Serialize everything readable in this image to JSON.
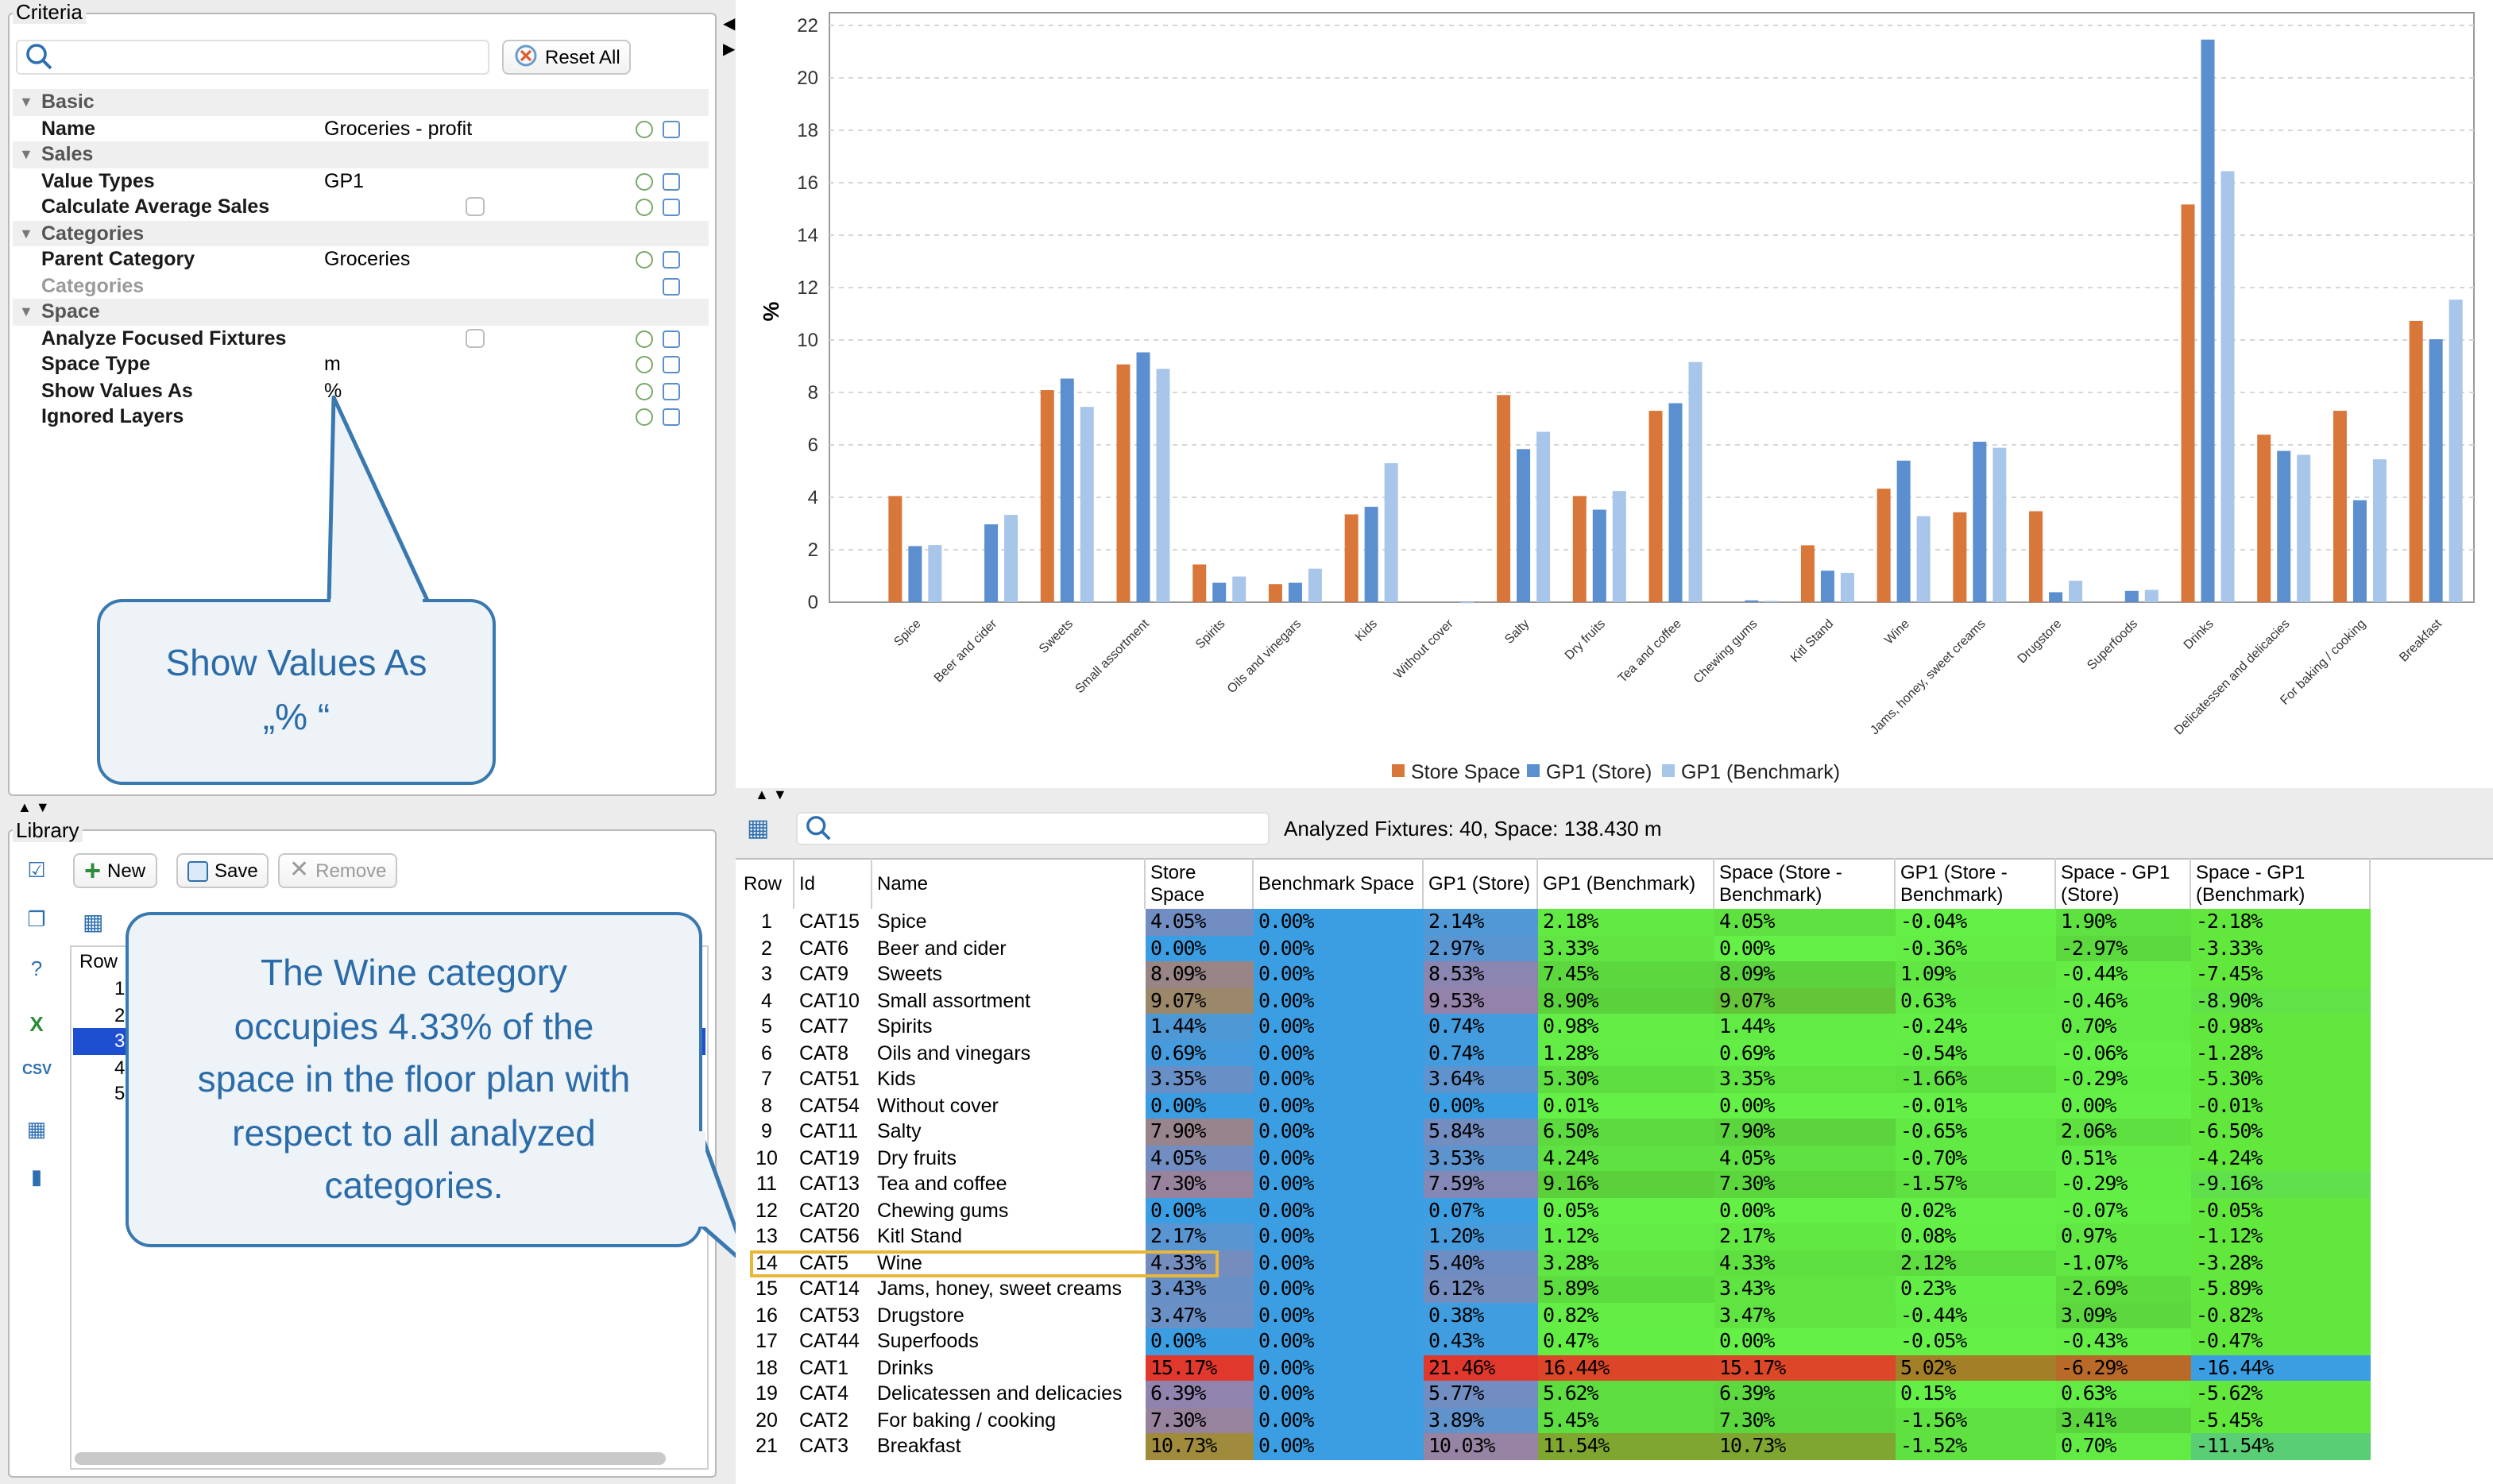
{
  "criteria": {
    "title": "Criteria",
    "search_placeholder": "",
    "reset_label": "Reset All",
    "groups": [
      {
        "label": "Basic",
        "rows": [
          {
            "key": "Name",
            "value": "Groceries - profit"
          }
        ]
      },
      {
        "label": "Sales",
        "rows": [
          {
            "key": "Value Types",
            "value": "GP1"
          },
          {
            "key": "Calculate Average Sales",
            "value": "",
            "checkbox": true
          }
        ]
      },
      {
        "label": "Categories",
        "rows": [
          {
            "key": "Parent Category",
            "value": "Groceries"
          },
          {
            "key": "Categories",
            "value": "",
            "disabled": true
          }
        ]
      },
      {
        "label": "Space",
        "rows": [
          {
            "key": "Analyze Focused Fixtures",
            "value": "",
            "checkbox": true
          },
          {
            "key": "Space Type",
            "value": "m"
          },
          {
            "key": "Show Values As",
            "value": "%"
          },
          {
            "key": "Ignored Layers",
            "value": ""
          }
        ]
      }
    ]
  },
  "callouts": {
    "show_values": {
      "line1": "Show Values As",
      "line2": "„% “"
    },
    "wine": {
      "lines": [
        "The Wine category",
        "occupies 4.33% of the",
        "space in the floor plan with",
        "respect to all analyzed",
        "categories."
      ]
    }
  },
  "library": {
    "title": "Library",
    "new_label": "New",
    "save_label": "Save",
    "remove_label": "Remove",
    "row_header": "Row",
    "rows": [
      "1",
      "2",
      "3",
      "4",
      "5"
    ]
  },
  "table_toolbar": {
    "search_placeholder": "",
    "status": "Analyzed Fixtures: 40, Space: 138.430 m"
  },
  "table": {
    "columns": [
      "Row",
      "Id",
      "Name",
      "Store Space",
      "Benchmark Space",
      "GP1 (Store)",
      "GP1 (Benchmark)",
      "Space (Store - Benchmark)",
      "GP1 (Store - Benchmark)",
      "Space - GP1 (Store)",
      "Space - GP1 (Benchmark)"
    ],
    "rows": [
      [
        "1",
        "CAT15",
        "Spice",
        "4.05%",
        "0.00%",
        "2.14%",
        "2.18%",
        "4.05%",
        "-0.04%",
        "1.90%",
        "-2.18%"
      ],
      [
        "2",
        "CAT6",
        "Beer and cider",
        "0.00%",
        "0.00%",
        "2.97%",
        "3.33%",
        "0.00%",
        "-0.36%",
        "-2.97%",
        "-3.33%"
      ],
      [
        "3",
        "CAT9",
        "Sweets",
        "8.09%",
        "0.00%",
        "8.53%",
        "7.45%",
        "8.09%",
        "1.09%",
        "-0.44%",
        "-7.45%"
      ],
      [
        "4",
        "CAT10",
        "Small assortment",
        "9.07%",
        "0.00%",
        "9.53%",
        "8.90%",
        "9.07%",
        "0.63%",
        "-0.46%",
        "-8.90%"
      ],
      [
        "5",
        "CAT7",
        "Spirits",
        "1.44%",
        "0.00%",
        "0.74%",
        "0.98%",
        "1.44%",
        "-0.24%",
        "0.70%",
        "-0.98%"
      ],
      [
        "6",
        "CAT8",
        "Oils and vinegars",
        "0.69%",
        "0.00%",
        "0.74%",
        "1.28%",
        "0.69%",
        "-0.54%",
        "-0.06%",
        "-1.28%"
      ],
      [
        "7",
        "CAT51",
        "Kids",
        "3.35%",
        "0.00%",
        "3.64%",
        "5.30%",
        "3.35%",
        "-1.66%",
        "-0.29%",
        "-5.30%"
      ],
      [
        "8",
        "CAT54",
        "Without cover",
        "0.00%",
        "0.00%",
        "0.00%",
        "0.01%",
        "0.00%",
        "-0.01%",
        "0.00%",
        "-0.01%"
      ],
      [
        "9",
        "CAT11",
        "Salty",
        "7.90%",
        "0.00%",
        "5.84%",
        "6.50%",
        "7.90%",
        "-0.65%",
        "2.06%",
        "-6.50%"
      ],
      [
        "10",
        "CAT19",
        "Dry fruits",
        "4.05%",
        "0.00%",
        "3.53%",
        "4.24%",
        "4.05%",
        "-0.70%",
        "0.51%",
        "-4.24%"
      ],
      [
        "11",
        "CAT13",
        "Tea and coffee",
        "7.30%",
        "0.00%",
        "7.59%",
        "9.16%",
        "7.30%",
        "-1.57%",
        "-0.29%",
        "-9.16%"
      ],
      [
        "12",
        "CAT20",
        "Chewing gums",
        "0.00%",
        "0.00%",
        "0.07%",
        "0.05%",
        "0.00%",
        "0.02%",
        "-0.07%",
        "-0.05%"
      ],
      [
        "13",
        "CAT56",
        "Kitl Stand",
        "2.17%",
        "0.00%",
        "1.20%",
        "1.12%",
        "2.17%",
        "0.08%",
        "0.97%",
        "-1.12%"
      ],
      [
        "14",
        "CAT5",
        "Wine",
        "4.33%",
        "0.00%",
        "5.40%",
        "3.28%",
        "4.33%",
        "2.12%",
        "-1.07%",
        "-3.28%"
      ],
      [
        "15",
        "CAT14",
        "Jams, honey, sweet creams",
        "3.43%",
        "0.00%",
        "6.12%",
        "5.89%",
        "3.43%",
        "0.23%",
        "-2.69%",
        "-5.89%"
      ],
      [
        "16",
        "CAT53",
        "Drugstore",
        "3.47%",
        "0.00%",
        "0.38%",
        "0.82%",
        "3.47%",
        "-0.44%",
        "3.09%",
        "-0.82%"
      ],
      [
        "17",
        "CAT44",
        "Superfoods",
        "0.00%",
        "0.00%",
        "0.43%",
        "0.47%",
        "0.00%",
        "-0.05%",
        "-0.43%",
        "-0.47%"
      ],
      [
        "18",
        "CAT1",
        "Drinks",
        "15.17%",
        "0.00%",
        "21.46%",
        "16.44%",
        "15.17%",
        "5.02%",
        "-6.29%",
        "-16.44%"
      ],
      [
        "19",
        "CAT4",
        "Delicatessen and delicacies",
        "6.39%",
        "0.00%",
        "5.77%",
        "5.62%",
        "6.39%",
        "0.15%",
        "0.63%",
        "-5.62%"
      ],
      [
        "20",
        "CAT2",
        "For baking / cooking",
        "7.30%",
        "0.00%",
        "3.89%",
        "5.45%",
        "7.30%",
        "-1.56%",
        "3.41%",
        "-5.45%"
      ],
      [
        "21",
        "CAT3",
        "Breakfast",
        "10.73%",
        "0.00%",
        "10.03%",
        "11.54%",
        "10.73%",
        "-1.52%",
        "0.70%",
        "-11.54%"
      ]
    ]
  },
  "chart_data": {
    "type": "bar",
    "ylabel": "%",
    "ylim": [
      0,
      22
    ],
    "yticks": [
      "0",
      "2",
      "4",
      "6",
      "8",
      "10",
      "12",
      "14",
      "16",
      "18",
      "20",
      "22"
    ],
    "grid": true,
    "legend_position": "bottom",
    "categories": [
      "Spice",
      "Beer and cider",
      "Sweets",
      "Small assortment",
      "Spirits",
      "Oils and vinegars",
      "Kids",
      "Without cover",
      "Salty",
      "Dry fruits",
      "Tea and coffee",
      "Chewing gums",
      "Kitl Stand",
      "Wine",
      "Jams, honey, sweet creams",
      "Drugstore",
      "Superfoods",
      "Drinks",
      "Delicatessen and delicacies",
      "For baking / cooking",
      "Breakfast"
    ],
    "series": [
      {
        "name": "Store Space",
        "color": "#d9773a",
        "values": [
          4.05,
          0.0,
          8.09,
          9.07,
          1.44,
          0.69,
          3.35,
          0.0,
          7.9,
          4.05,
          7.3,
          0.0,
          2.17,
          4.33,
          3.43,
          3.47,
          0.0,
          15.17,
          6.39,
          7.3,
          10.73
        ]
      },
      {
        "name": "GP1 (Store)",
        "color": "#5b8fd0",
        "values": [
          2.14,
          2.97,
          8.53,
          9.53,
          0.74,
          0.74,
          3.64,
          0.0,
          5.84,
          3.53,
          7.59,
          0.07,
          1.2,
          5.4,
          6.12,
          0.38,
          0.43,
          21.46,
          5.77,
          3.89,
          10.03
        ]
      },
      {
        "name": "GP1 (Benchmark)",
        "color": "#a8c5ea",
        "values": [
          2.18,
          3.33,
          7.45,
          8.9,
          0.98,
          1.28,
          5.3,
          0.01,
          6.5,
          4.24,
          9.16,
          0.05,
          1.12,
          3.28,
          5.89,
          0.82,
          0.47,
          16.44,
          5.62,
          5.45,
          11.54
        ]
      }
    ]
  }
}
